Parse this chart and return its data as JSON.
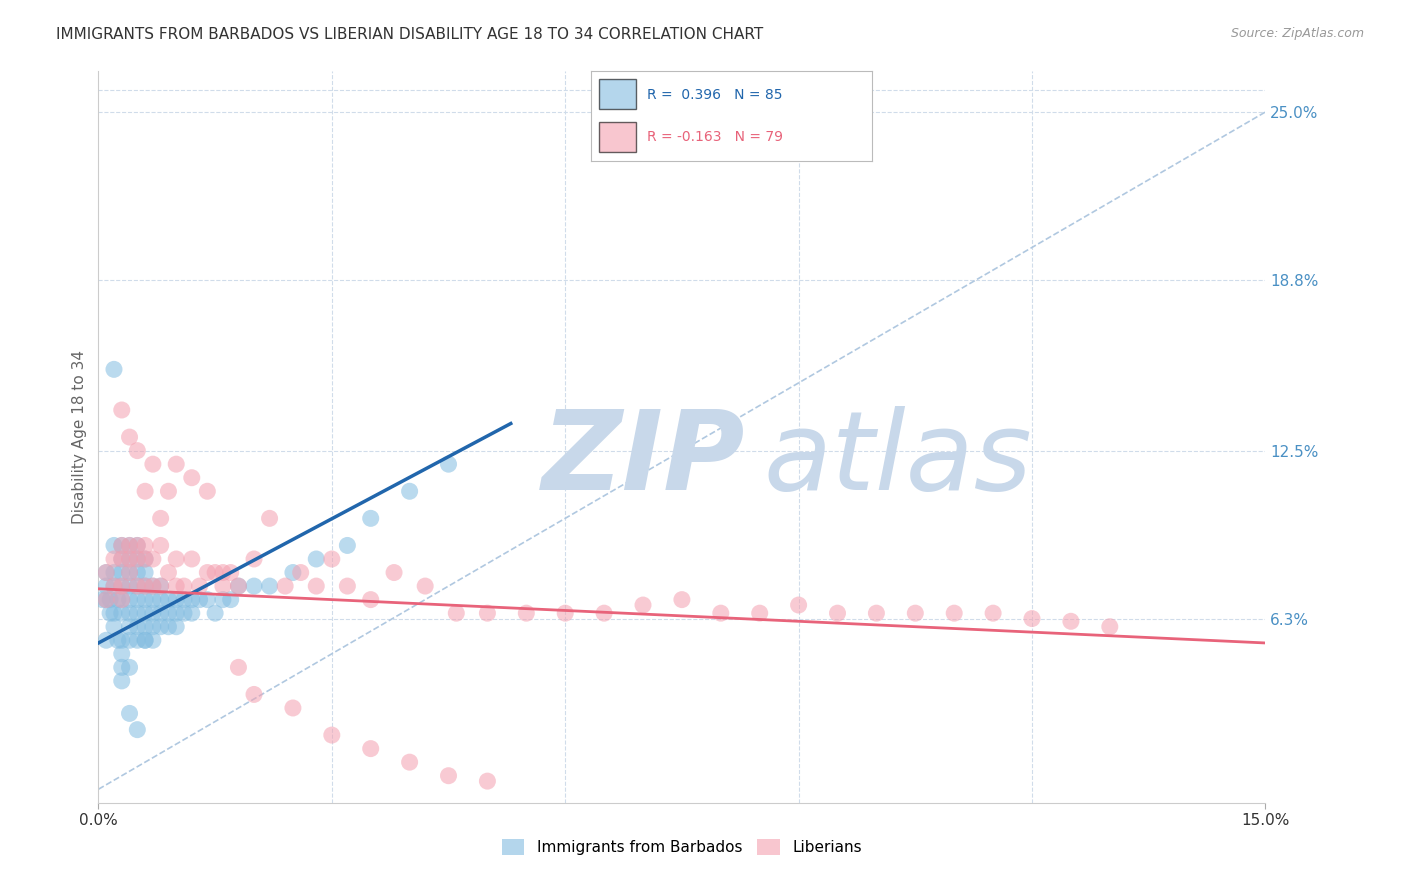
{
  "title": "IMMIGRANTS FROM BARBADOS VS LIBERIAN DISABILITY AGE 18 TO 34 CORRELATION CHART",
  "source": "Source: ZipAtlas.com",
  "ylabel": "Disability Age 18 to 34",
  "x_tick_labels": [
    "0.0%",
    "15.0%"
  ],
  "y_tick_labels_right": [
    "25.0%",
    "18.8%",
    "12.5%",
    "6.3%"
  ],
  "y_tick_values_right": [
    0.25,
    0.188,
    0.125,
    0.063
  ],
  "x_min": 0.0,
  "x_max": 0.15,
  "y_min": -0.005,
  "y_max": 0.265,
  "legend_label_blue_series": "Immigrants from Barbados",
  "legend_label_pink_series": "Liberians",
  "blue_color": "#82bce0",
  "pink_color": "#f4a0b0",
  "blue_line_color": "#2166ac",
  "pink_line_color": "#e8637a",
  "ref_line_color": "#b0c8e0",
  "grid_color": "#d0dcea",
  "background_color": "#ffffff",
  "title_color": "#333333",
  "axis_label_color": "#666666",
  "right_tick_color": "#4a90c4",
  "watermark_color": "#c8d8ea",
  "blue_trend": [
    0.0,
    0.054,
    0.053,
    0.135
  ],
  "pink_trend": [
    0.0,
    0.074,
    0.15,
    0.054
  ],
  "ref_line": [
    0.0,
    0.0,
    0.15,
    0.25
  ],
  "blue_x": [
    0.0005,
    0.001,
    0.001,
    0.001,
    0.001,
    0.0015,
    0.0015,
    0.002,
    0.002,
    0.002,
    0.002,
    0.002,
    0.0025,
    0.0025,
    0.003,
    0.003,
    0.003,
    0.003,
    0.003,
    0.003,
    0.003,
    0.003,
    0.003,
    0.004,
    0.004,
    0.004,
    0.004,
    0.004,
    0.004,
    0.004,
    0.004,
    0.004,
    0.005,
    0.005,
    0.005,
    0.005,
    0.005,
    0.005,
    0.005,
    0.005,
    0.006,
    0.006,
    0.006,
    0.006,
    0.006,
    0.006,
    0.006,
    0.007,
    0.007,
    0.007,
    0.007,
    0.007,
    0.008,
    0.008,
    0.008,
    0.008,
    0.009,
    0.009,
    0.009,
    0.01,
    0.01,
    0.01,
    0.011,
    0.011,
    0.012,
    0.012,
    0.013,
    0.014,
    0.015,
    0.016,
    0.017,
    0.018,
    0.02,
    0.022,
    0.025,
    0.028,
    0.032,
    0.035,
    0.04,
    0.045,
    0.002,
    0.003,
    0.004,
    0.005,
    0.006
  ],
  "blue_y": [
    0.07,
    0.055,
    0.07,
    0.075,
    0.08,
    0.065,
    0.07,
    0.06,
    0.065,
    0.075,
    0.08,
    0.09,
    0.055,
    0.07,
    0.04,
    0.05,
    0.055,
    0.065,
    0.07,
    0.075,
    0.08,
    0.085,
    0.09,
    0.045,
    0.055,
    0.06,
    0.065,
    0.07,
    0.075,
    0.08,
    0.085,
    0.09,
    0.055,
    0.06,
    0.065,
    0.07,
    0.075,
    0.08,
    0.085,
    0.09,
    0.055,
    0.06,
    0.065,
    0.07,
    0.075,
    0.08,
    0.085,
    0.055,
    0.06,
    0.065,
    0.07,
    0.075,
    0.06,
    0.065,
    0.07,
    0.075,
    0.06,
    0.065,
    0.07,
    0.06,
    0.065,
    0.07,
    0.065,
    0.07,
    0.065,
    0.07,
    0.07,
    0.07,
    0.065,
    0.07,
    0.07,
    0.075,
    0.075,
    0.075,
    0.08,
    0.085,
    0.09,
    0.1,
    0.11,
    0.12,
    0.155,
    0.045,
    0.028,
    0.022,
    0.055
  ],
  "pink_x": [
    0.001,
    0.001,
    0.002,
    0.002,
    0.003,
    0.003,
    0.003,
    0.003,
    0.004,
    0.004,
    0.004,
    0.005,
    0.005,
    0.005,
    0.006,
    0.006,
    0.006,
    0.007,
    0.007,
    0.008,
    0.008,
    0.009,
    0.01,
    0.01,
    0.011,
    0.012,
    0.013,
    0.014,
    0.015,
    0.016,
    0.017,
    0.018,
    0.02,
    0.022,
    0.024,
    0.026,
    0.028,
    0.03,
    0.032,
    0.035,
    0.038,
    0.042,
    0.046,
    0.05,
    0.055,
    0.06,
    0.065,
    0.07,
    0.075,
    0.08,
    0.085,
    0.09,
    0.095,
    0.1,
    0.105,
    0.11,
    0.115,
    0.12,
    0.125,
    0.13,
    0.003,
    0.004,
    0.005,
    0.006,
    0.007,
    0.008,
    0.009,
    0.01,
    0.012,
    0.014,
    0.016,
    0.018,
    0.02,
    0.025,
    0.03,
    0.035,
    0.04,
    0.045,
    0.05
  ],
  "pink_y": [
    0.07,
    0.08,
    0.075,
    0.085,
    0.07,
    0.075,
    0.085,
    0.09,
    0.08,
    0.085,
    0.09,
    0.075,
    0.085,
    0.09,
    0.075,
    0.085,
    0.09,
    0.075,
    0.085,
    0.075,
    0.09,
    0.08,
    0.075,
    0.085,
    0.075,
    0.085,
    0.075,
    0.08,
    0.08,
    0.075,
    0.08,
    0.075,
    0.085,
    0.1,
    0.075,
    0.08,
    0.075,
    0.085,
    0.075,
    0.07,
    0.08,
    0.075,
    0.065,
    0.065,
    0.065,
    0.065,
    0.065,
    0.068,
    0.07,
    0.065,
    0.065,
    0.068,
    0.065,
    0.065,
    0.065,
    0.065,
    0.065,
    0.063,
    0.062,
    0.06,
    0.14,
    0.13,
    0.125,
    0.11,
    0.12,
    0.1,
    0.11,
    0.12,
    0.115,
    0.11,
    0.08,
    0.045,
    0.035,
    0.03,
    0.02,
    0.015,
    0.01,
    0.005,
    0.003
  ]
}
